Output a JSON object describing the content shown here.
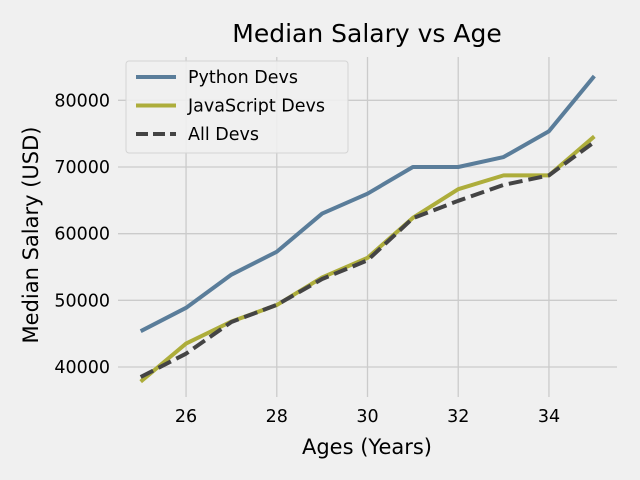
{
  "chart_data": {
    "type": "line",
    "title": "Median Salary vs Age",
    "xlabel": "Ages (Years)",
    "ylabel": "Median Salary (USD)",
    "x": [
      25,
      26,
      27,
      28,
      29,
      30,
      31,
      32,
      33,
      34,
      35
    ],
    "xticks": [
      26,
      28,
      30,
      32,
      34
    ],
    "yticks": [
      40000,
      50000,
      60000,
      70000,
      80000
    ],
    "xlim": [
      24.5,
      35.5
    ],
    "ylim": [
      35500,
      86500
    ],
    "grid": true,
    "legend_position": "upper-left",
    "style": "fivethirtyeight",
    "series": [
      {
        "name": "Python Devs",
        "color": "#5a7d9a",
        "dash": "solid",
        "values": [
          45372,
          48876,
          53850,
          57287,
          63016,
          65998,
          70003,
          70000,
          71496,
          75370,
          83640
        ]
      },
      {
        "name": "JavaScript Devs",
        "color": "#adad3b",
        "dash": "solid",
        "values": [
          37810,
          43515,
          46823,
          49293,
          53437,
          56373,
          62375,
          66674,
          68745,
          68746,
          74583
        ]
      },
      {
        "name": "All Devs",
        "color": "#444444",
        "dash": "dashed",
        "values": [
          38496,
          42000,
          46752,
          49320,
          53200,
          56000,
          62316,
          64928,
          67317,
          68748,
          73752
        ]
      }
    ]
  }
}
